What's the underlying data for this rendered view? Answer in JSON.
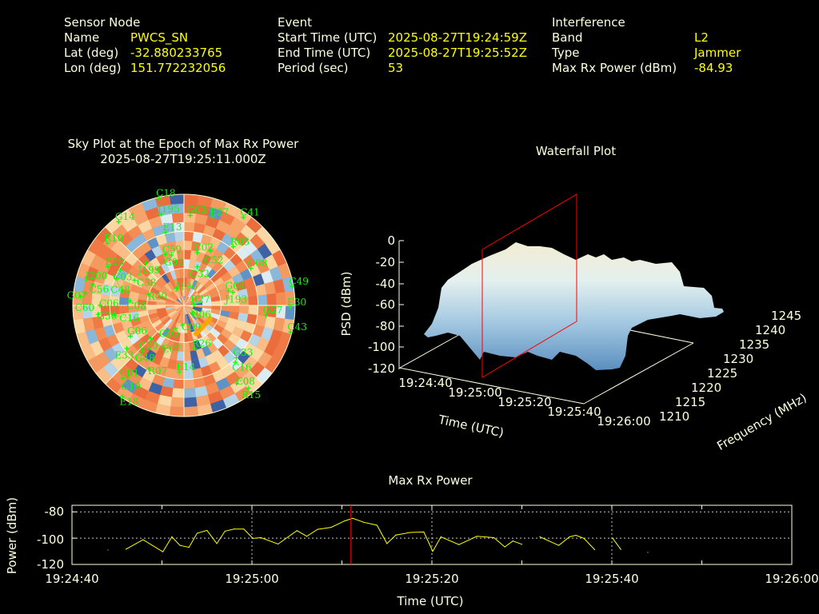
{
  "header": {
    "sensor": {
      "heading": "Sensor Node",
      "name_label": "Name",
      "name": "PWCS_SN",
      "lat_label": "Lat (deg)",
      "lat": "-32.880233765",
      "lon_label": "Lon (deg)",
      "lon": "151.772232056"
    },
    "event": {
      "heading": "Event",
      "start_label": "Start Time (UTC)",
      "start": "2025-08-27T19:24:59Z",
      "end_label": "End Time (UTC)",
      "end": "2025-08-27T19:25:52Z",
      "period_label": "Period (sec)",
      "period": "53"
    },
    "interference": {
      "heading": "Interference",
      "band_label": "Band",
      "band": "L2",
      "type_label": "Type",
      "type": "Jammer",
      "power_label": "Max Rx Power (dBm)",
      "power": "-84.93"
    }
  },
  "colors": {
    "background": "#000000",
    "label": "#ffffe0",
    "value": "#ffff00",
    "satellite": "#00ff00",
    "trace": "#ffff00",
    "marker": "#ff0000",
    "jammer": "#ffa500"
  },
  "chart_data": [
    {
      "type": "scatter",
      "kind": "sky-plot",
      "title": "Sky Plot at the Epoch of Max Rx Power",
      "subtitle": "2025-08-27T19:25:11.000Z",
      "elevation_rings": [
        0,
        30,
        60
      ],
      "satellites": [
        {
          "id": "C18",
          "az": 347,
          "el": 1
        },
        {
          "id": "J195",
          "az": 346,
          "el": 14
        },
        {
          "id": "G03",
          "az": 4,
          "el": 17
        },
        {
          "id": "E27",
          "az": 18,
          "el": 15
        },
        {
          "id": "C41",
          "az": 34,
          "el": 4
        },
        {
          "id": "G14",
          "az": 322,
          "el": 4
        },
        {
          "id": "E13",
          "az": 346,
          "el": 29
        },
        {
          "id": "R10",
          "az": 309,
          "el": 10
        },
        {
          "id": "C59",
          "az": 340,
          "el": 46
        },
        {
          "id": "G01",
          "az": 346,
          "el": 48
        },
        {
          "id": "C02",
          "az": 14,
          "el": 46
        },
        {
          "id": "C52",
          "az": 26,
          "el": 41
        },
        {
          "id": "C32",
          "az": 19,
          "el": 57
        },
        {
          "id": "R05",
          "az": 40,
          "el": 28
        },
        {
          "id": "J199",
          "az": 318,
          "el": 44
        },
        {
          "id": "G08",
          "az": 61,
          "el": 28
        },
        {
          "id": "E29",
          "az": 297,
          "el": 21
        },
        {
          "id": "C03",
          "az": 299,
          "el": 31
        },
        {
          "id": "C48",
          "az": 292,
          "el": 31
        },
        {
          "id": "J200",
          "az": 286,
          "el": 8
        },
        {
          "id": "C38",
          "az": 297,
          "el": 45
        },
        {
          "id": "C56",
          "az": 283,
          "el": 14
        },
        {
          "id": "G07",
          "az": 277,
          "el": 10
        },
        {
          "id": "C60",
          "az": 275,
          "el": 6
        },
        {
          "id": "R09",
          "az": 287,
          "el": 60
        },
        {
          "id": "J196",
          "az": 337,
          "el": 75
        },
        {
          "id": "G04",
          "az": 72,
          "el": 52
        },
        {
          "id": "J193",
          "az": 75,
          "el": 49
        },
        {
          "id": "C49",
          "az": 80,
          "el": 1
        },
        {
          "id": "C08",
          "az": 275,
          "el": 46
        },
        {
          "id": "R27",
          "az": 85,
          "el": 82
        },
        {
          "id": "C06",
          "az": 270,
          "el": 22
        },
        {
          "id": "G30",
          "az": 264,
          "el": 20
        },
        {
          "id": "C16",
          "az": 262,
          "el": 33
        },
        {
          "id": "G27",
          "az": 97,
          "el": 23
        },
        {
          "id": "E30",
          "az": 91,
          "el": 4
        },
        {
          "id": "C43",
          "az": 104,
          "el": 1
        },
        {
          "id": "R06",
          "az": 132,
          "el": 81
        },
        {
          "id": "C09",
          "az": 185,
          "el": 74
        },
        {
          "id": "G09",
          "az": 200,
          "el": 70
        },
        {
          "id": "C20",
          "az": 225,
          "el": 52
        },
        {
          "id": "G06",
          "az": 240,
          "el": 40
        },
        {
          "id": "E33",
          "az": 233,
          "el": 32
        },
        {
          "id": "G48",
          "az": 222,
          "el": 40
        },
        {
          "id": "E07",
          "az": 207,
          "el": 52
        },
        {
          "id": "R26",
          "az": 166,
          "el": 54
        },
        {
          "id": "G33",
          "az": 135,
          "el": 30
        },
        {
          "id": "C16b",
          "label": "C16",
          "az": 138,
          "el": 28
        },
        {
          "id": "R07",
          "az": 209,
          "el": 31
        },
        {
          "id": "E14",
          "az": 184,
          "el": 36
        },
        {
          "id": "C01",
          "az": 220,
          "el": 13
        },
        {
          "id": "C19",
          "az": 218,
          "el": 16
        },
        {
          "id": "E08",
          "az": 146,
          "el": 14
        },
        {
          "id": "R15",
          "az": 142,
          "el": 5
        },
        {
          "id": "E18",
          "az": 214,
          "el": 1
        }
      ],
      "jammer_track": [
        {
          "az": 117,
          "el": 66
        },
        {
          "az": 157,
          "el": 65
        }
      ]
    },
    {
      "type": "area",
      "kind": "waterfall-3d",
      "title": "Waterfall Plot",
      "zlabel": "PSD (dBm)",
      "xlabel": "Time (UTC)",
      "ylabel": "Frequency (MHz)",
      "z_ticks": [
        "0",
        "-20",
        "-40",
        "-60",
        "-80",
        "-100",
        "-120"
      ],
      "x_ticks": [
        "19:24:40",
        "19:25:00",
        "19:25:20",
        "19:25:40",
        "19:26:00"
      ],
      "y_ticks": [
        "1210",
        "1215",
        "1220",
        "1225",
        "1230",
        "1235",
        "1240",
        "1245"
      ],
      "zlim": [
        -120,
        0
      ],
      "marker_time": "19:25:11"
    },
    {
      "type": "line",
      "title": "Max Rx Power",
      "xlabel": "Time (UTC)",
      "ylabel": "Power (dBm)",
      "x_ticks": [
        "19:24:40",
        "19:25:00",
        "19:25:20",
        "19:25:40",
        "19:26:00"
      ],
      "y_ticks": [
        "-80",
        "-100",
        "-120"
      ],
      "y_tick_values": [
        -80,
        -100,
        -120
      ],
      "xlim_seconds": [
        0,
        80
      ],
      "ylim": [
        -120,
        -75
      ],
      "marker_seconds": 31,
      "grid": true,
      "segments": [
        [
          [
            4.0,
            -109
          ]
        ],
        [
          [
            6.0,
            -108.4
          ],
          [
            7.9,
            -101.2
          ],
          [
            10.1,
            -110.4
          ],
          [
            11.1,
            -99
          ],
          [
            12.0,
            -105.5
          ],
          [
            13.0,
            -107
          ],
          [
            13.9,
            -96.3
          ],
          [
            15.0,
            -94.1
          ],
          [
            16.1,
            -104.1
          ],
          [
            17.0,
            -94.7
          ],
          [
            18.0,
            -93.1
          ],
          [
            19.1,
            -93.1
          ],
          [
            20.1,
            -100.2
          ],
          [
            21.0,
            -99.6
          ],
          [
            22.9,
            -104.5
          ],
          [
            25.0,
            -94.3
          ],
          [
            26.1,
            -98.6
          ],
          [
            27.3,
            -93.3
          ],
          [
            28.8,
            -91.8
          ],
          [
            30.3,
            -86.9
          ],
          [
            31.2,
            -84.93
          ],
          [
            32.4,
            -87.9
          ],
          [
            33.9,
            -90.2
          ],
          [
            35.0,
            -104.1
          ],
          [
            36.0,
            -97.6
          ],
          [
            37.6,
            -95.7
          ],
          [
            39.1,
            -95.3
          ],
          [
            40.1,
            -110
          ],
          [
            41.0,
            -99
          ],
          [
            43.0,
            -104.9
          ],
          [
            45.0,
            -98.6
          ],
          [
            46.9,
            -99.6
          ],
          [
            48.1,
            -106.7
          ],
          [
            49.0,
            -102.2
          ],
          [
            50.0,
            -104.7
          ]
        ],
        [
          [
            52.0,
            -99
          ],
          [
            54.1,
            -105.5
          ],
          [
            55.3,
            -99
          ],
          [
            56.0,
            -97.8
          ],
          [
            56.9,
            -100.2
          ],
          [
            58.1,
            -108.8
          ]
        ],
        [
          [
            60.1,
            -100.2
          ],
          [
            61.0,
            -108.6
          ]
        ],
        [
          [
            64.0,
            -110.8
          ]
        ]
      ]
    }
  ]
}
